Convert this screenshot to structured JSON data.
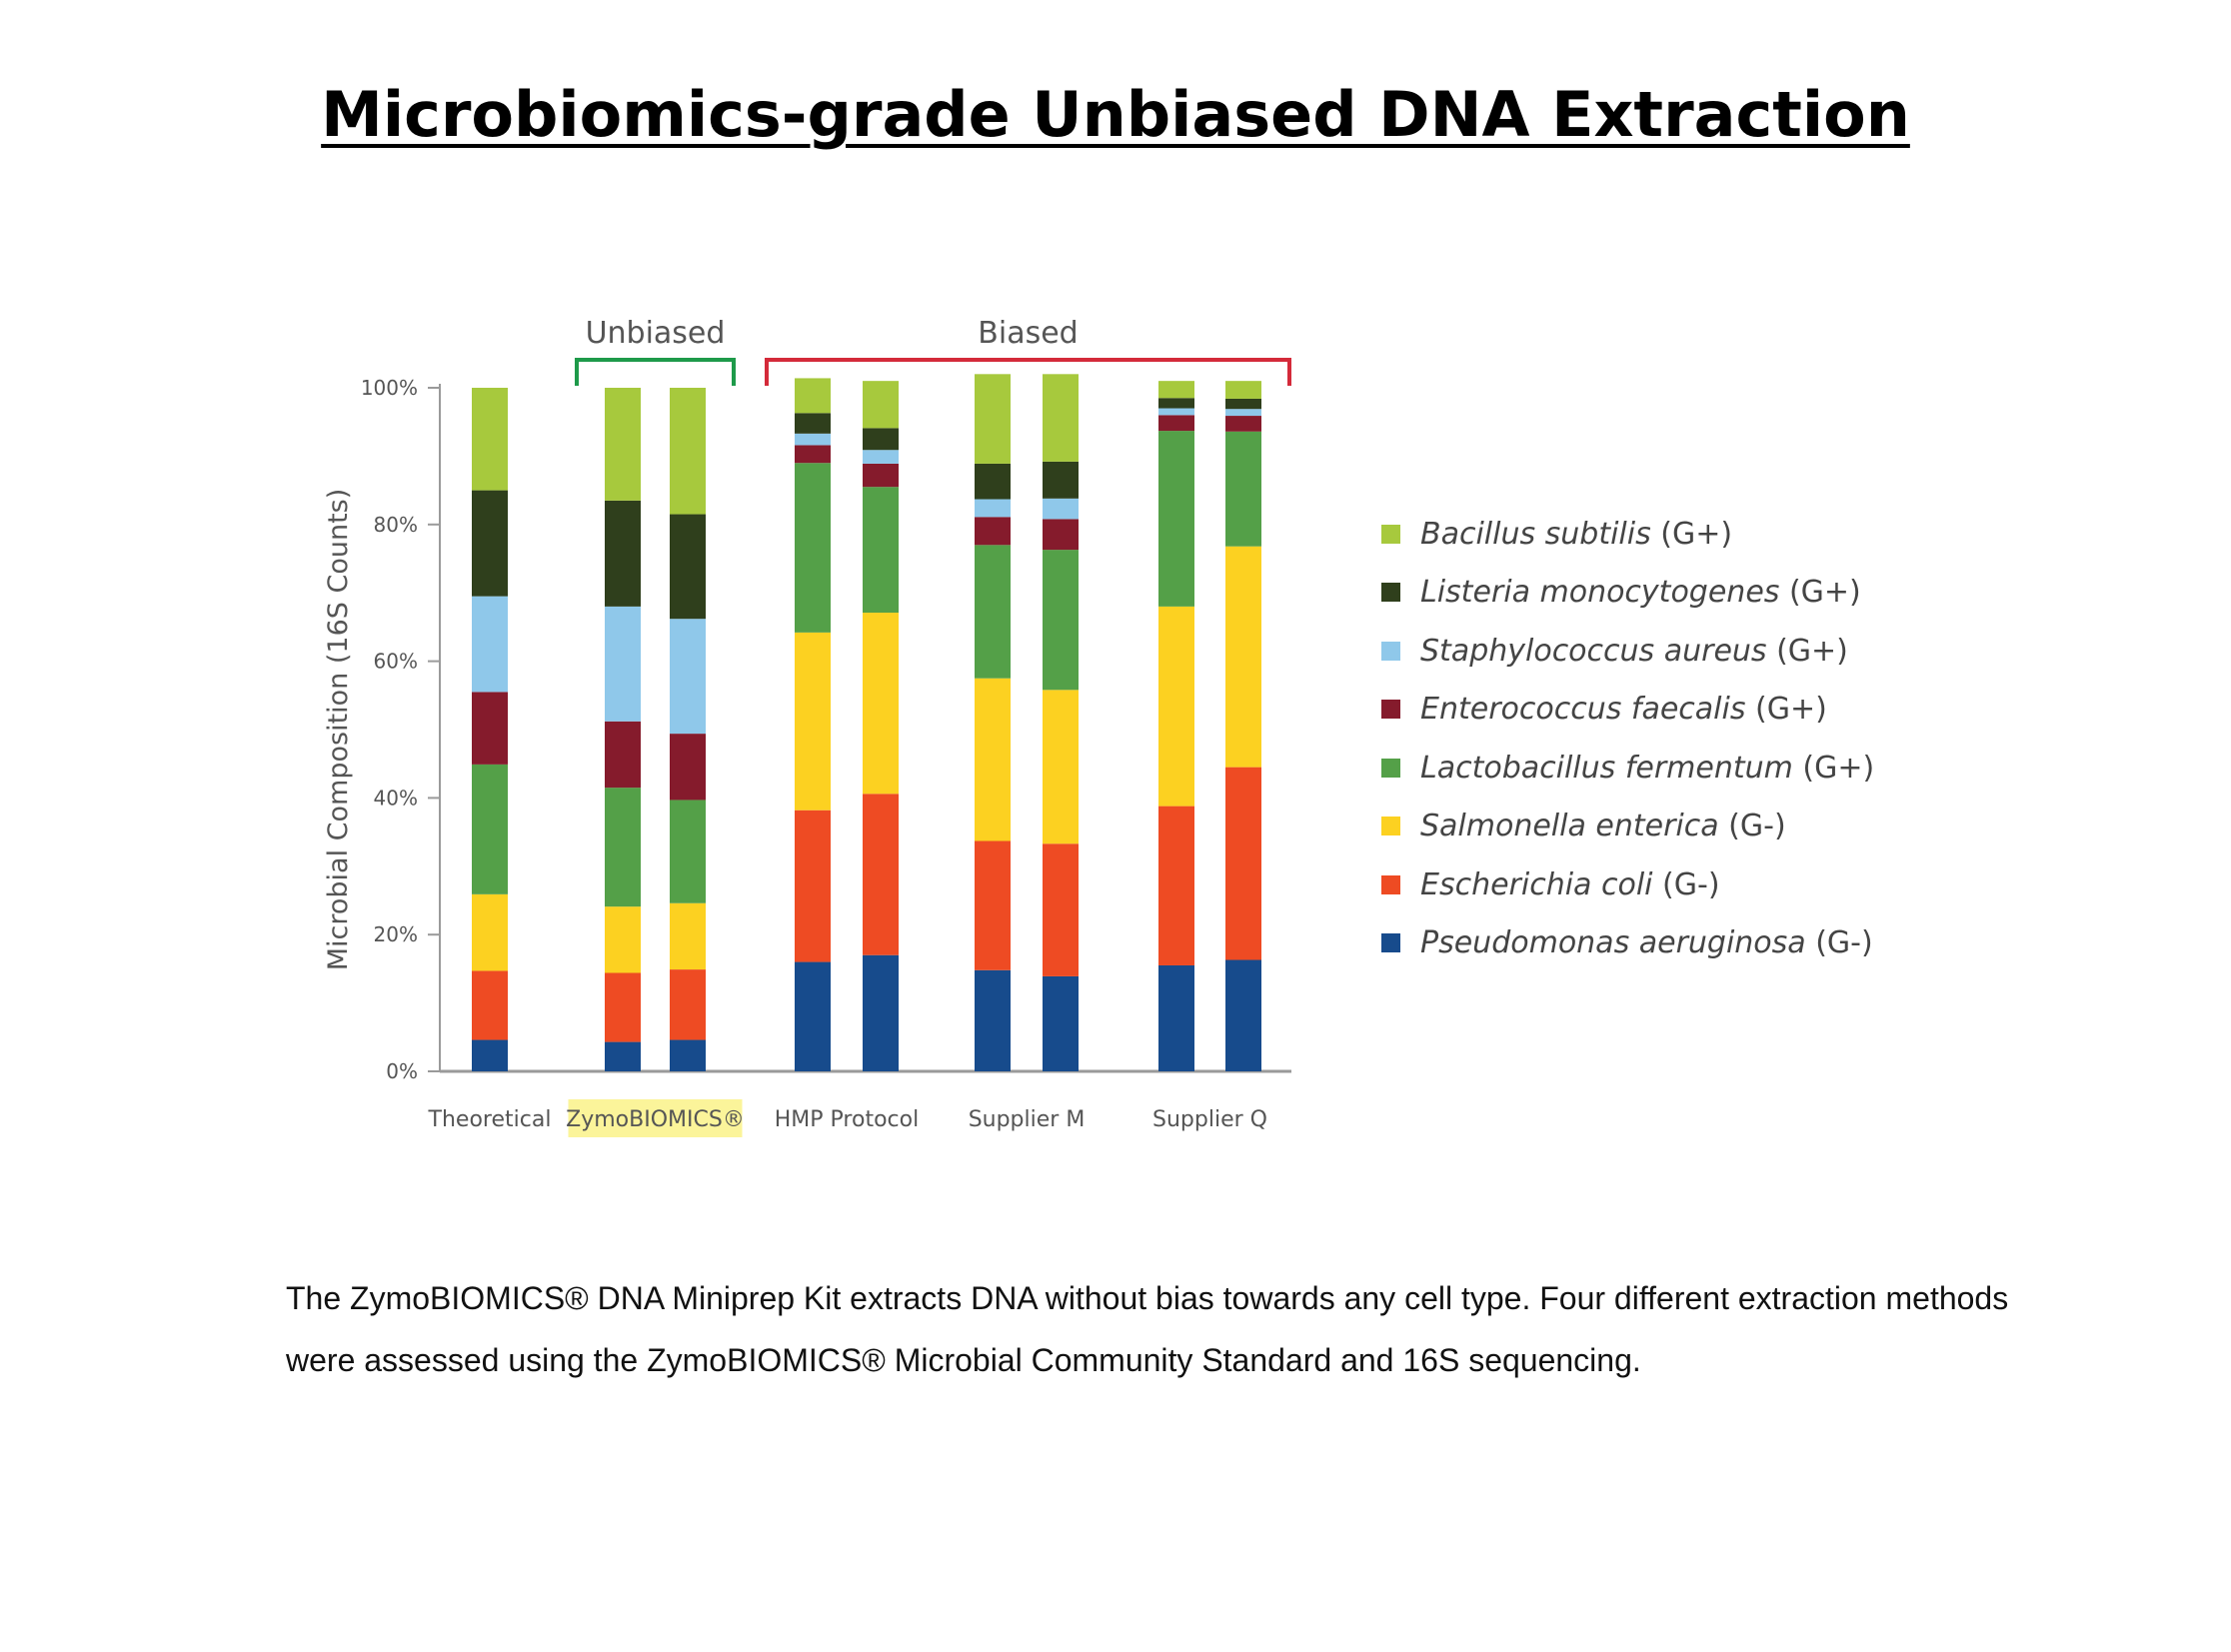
{
  "page_title": "Microbiomics-grade Unbiased DNA Extraction",
  "caption": "The ZymoBIOMICS® DNA Miniprep Kit extracts DNA without bias towards any cell type. Four different extraction methods were assessed using the ZymoBIOMICS® Microbial Community Standard and 16S sequencing.",
  "chart_data": {
    "type": "bar",
    "stacked": true,
    "title": "",
    "ylabel": "Microbial Composition (16S Counts)",
    "xlabel": "",
    "ylim": [
      0,
      100
    ],
    "yticks": [
      "0%",
      "20%",
      "40%",
      "60%",
      "80%",
      "100%"
    ],
    "groups": [
      {
        "label": "Theoretical",
        "highlight": false,
        "bars": 1
      },
      {
        "label": "ZymoBIOMICS®",
        "highlight": true,
        "highlight_color": "#fbf49a",
        "bars": 2
      },
      {
        "label": "HMP Protocol",
        "highlight": false,
        "bars": 2
      },
      {
        "label": "Supplier M",
        "highlight": false,
        "bars": 2
      },
      {
        "label": "Supplier Q",
        "highlight": false,
        "bars": 2
      }
    ],
    "brackets": [
      {
        "label": "Unbiased",
        "color": "#1e9a4a",
        "groups": [
          "ZymoBIOMICS®"
        ]
      },
      {
        "label": "Biased",
        "color": "#d42a3a",
        "groups": [
          "HMP Protocol",
          "Supplier M",
          "Supplier Q"
        ]
      }
    ],
    "bars": [
      "Theoretical",
      "ZymoBIOMICS® 1",
      "ZymoBIOMICS® 2",
      "HMP Protocol 1",
      "HMP Protocol 2",
      "Supplier M 1",
      "Supplier M 2",
      "Supplier Q 1",
      "Supplier Q 2"
    ],
    "series": [
      {
        "name": "Pseudomonas aeruginosa",
        "suffix": "(G-)",
        "color": "#174b8c",
        "values": [
          4.6,
          4.3,
          4.6,
          16.0,
          17.0,
          14.8,
          13.9,
          15.5,
          16.3
        ]
      },
      {
        "name": "Escherichia coli",
        "suffix": "(G-)",
        "color": "#ee4b23",
        "values": [
          10.1,
          10.1,
          10.3,
          22.2,
          23.6,
          18.9,
          19.4,
          23.3,
          28.2
        ]
      },
      {
        "name": "Salmonella enterica",
        "suffix": "(G-)",
        "color": "#fcd121",
        "values": [
          11.2,
          9.7,
          9.7,
          26.0,
          26.5,
          23.8,
          22.5,
          29.2,
          32.3
        ]
      },
      {
        "name": "Lactobacillus fermentum",
        "suffix": "(G+)",
        "color": "#54a048",
        "values": [
          19.0,
          17.4,
          15.1,
          24.8,
          18.4,
          19.5,
          20.5,
          25.7,
          16.8
        ]
      },
      {
        "name": "Enterococcus faecalis",
        "suffix": "(G+)",
        "color": "#851b2c",
        "values": [
          10.6,
          9.7,
          9.7,
          2.6,
          3.4,
          4.1,
          4.5,
          2.3,
          2.3
        ]
      },
      {
        "name": "Staphylococcus aureus",
        "suffix": "(G+)",
        "color": "#8fc8ea",
        "values": [
          14.0,
          16.8,
          16.8,
          1.7,
          2.0,
          2.6,
          3.0,
          1.0,
          1.0
        ]
      },
      {
        "name": "Listeria monocytogenes",
        "suffix": "(G+)",
        "color": "#2f3f1c",
        "values": [
          15.5,
          15.5,
          15.3,
          3.0,
          3.2,
          5.2,
          5.4,
          1.5,
          1.5
        ]
      },
      {
        "name": "Bacillus subtilis",
        "suffix": "(G+)",
        "color": "#a7c93d",
        "values": [
          15.0,
          16.5,
          18.5,
          5.1,
          6.9,
          13.1,
          12.8,
          2.5,
          2.6
        ]
      }
    ],
    "legend_position": "right",
    "grid": false
  }
}
